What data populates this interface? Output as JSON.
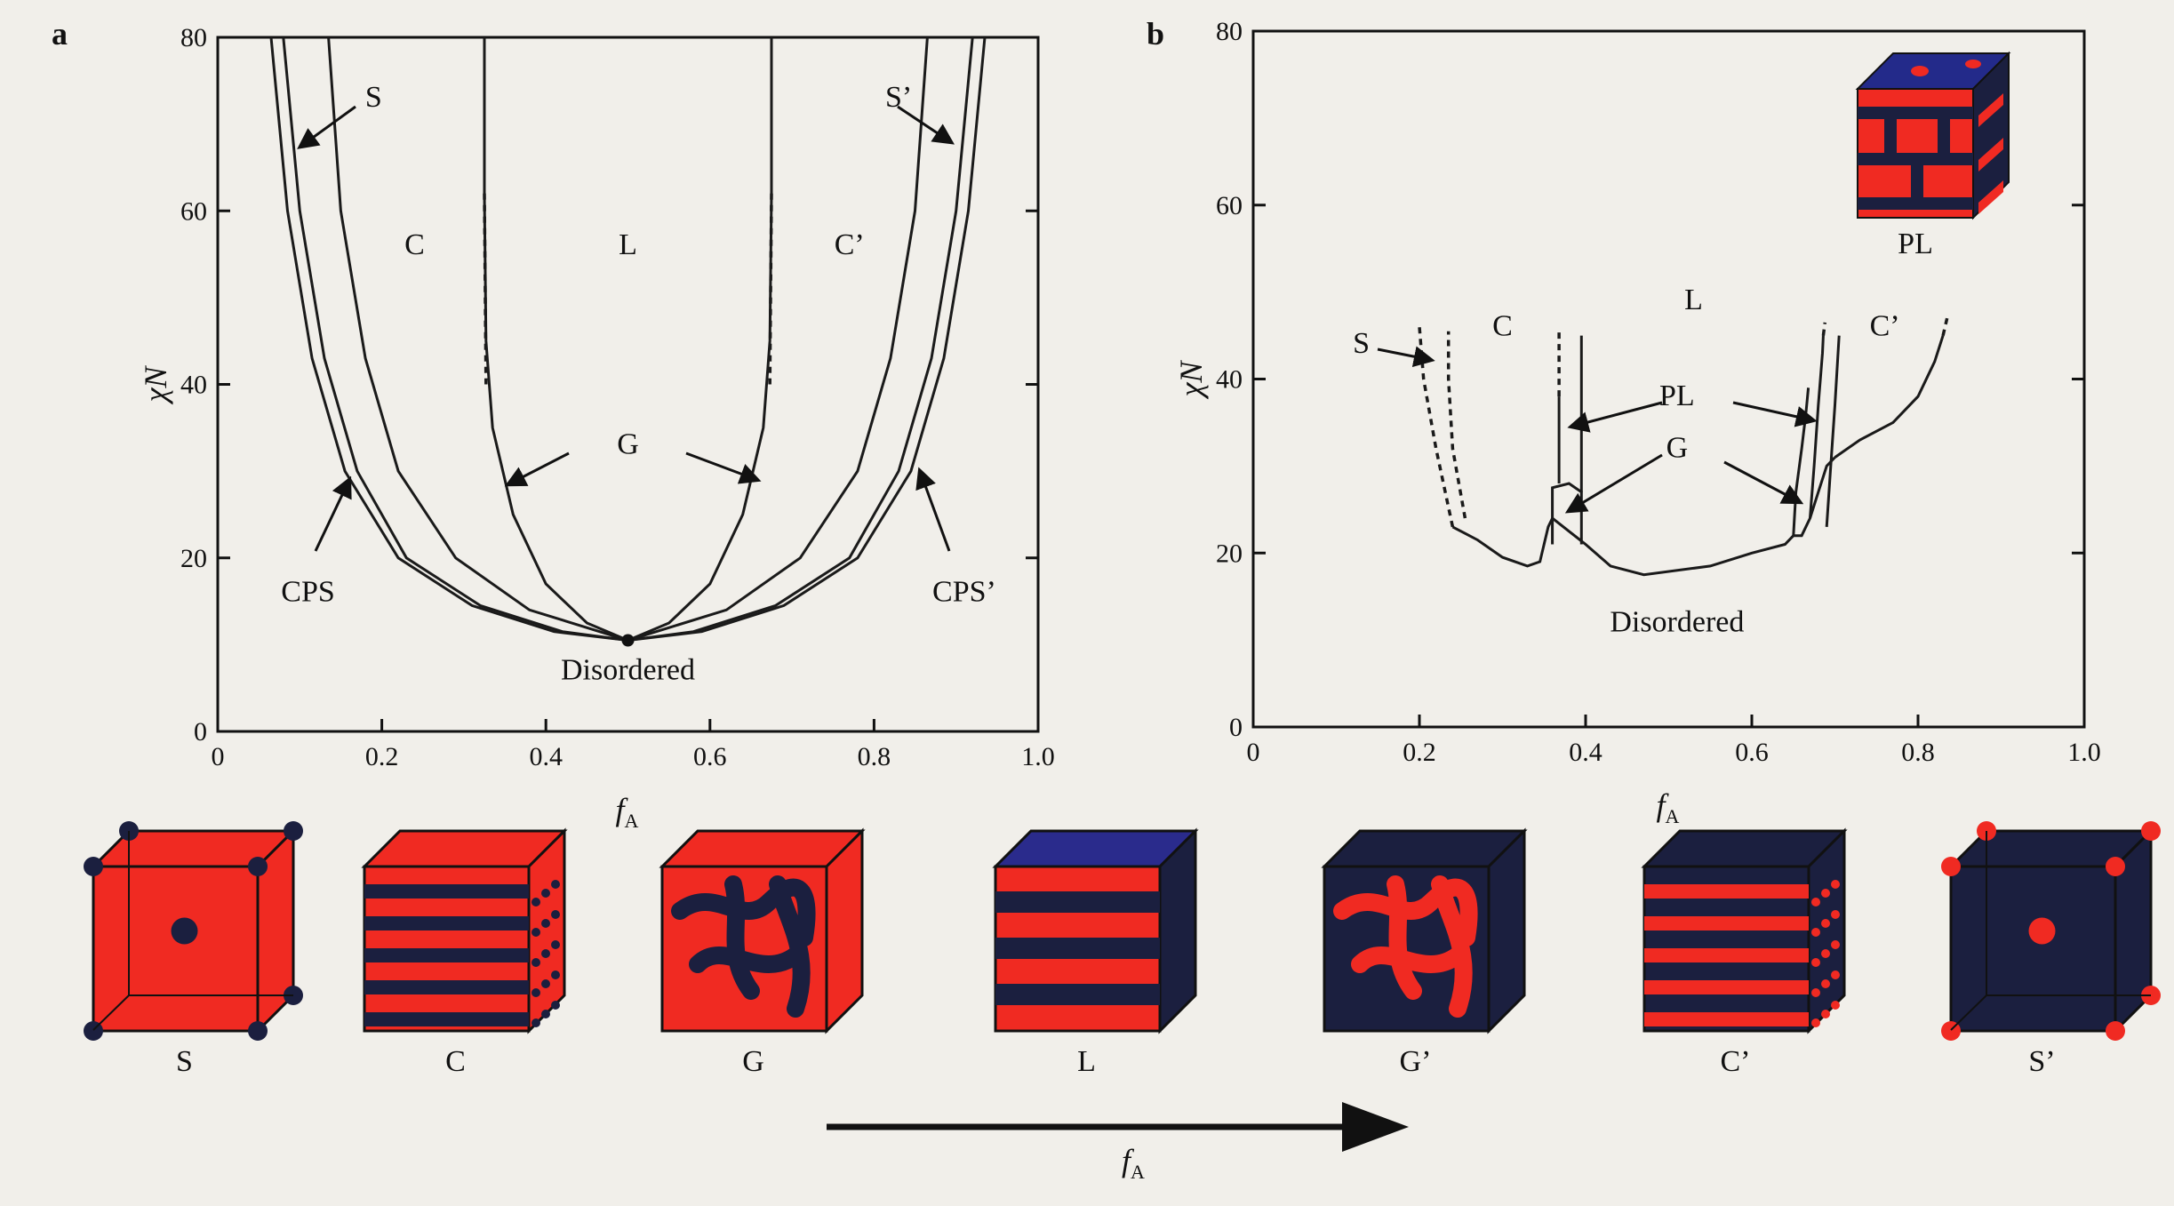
{
  "chart_data": [
    {
      "panel": "a",
      "type": "line",
      "xlabel": "f",
      "xlabel_sub": "A",
      "ylabel": "χN",
      "xlim": [
        0,
        1.0
      ],
      "ylim": [
        0,
        80
      ],
      "x_ticks": [
        "0",
        "0.2",
        "0.4",
        "0.6",
        "0.8",
        "1.0"
      ],
      "y_ticks": [
        "0",
        "20",
        "40",
        "60",
        "80"
      ],
      "regions": [
        {
          "label": "S",
          "x": 0.19,
          "y": 72
        },
        {
          "label": "C",
          "x": 0.24,
          "y": 55
        },
        {
          "label": "L",
          "x": 0.5,
          "y": 55
        },
        {
          "label": "C’",
          "x": 0.77,
          "y": 55
        },
        {
          "label": "S’",
          "x": 0.83,
          "y": 72
        },
        {
          "label": "G",
          "x": 0.5,
          "y": 32
        },
        {
          "label": "CPS",
          "x": 0.11,
          "y": 15
        },
        {
          "label": "CPS’",
          "x": 0.91,
          "y": 15
        },
        {
          "label": "Disordered",
          "x": 0.5,
          "y": 6
        }
      ],
      "critical_point": {
        "x": 0.5,
        "y": 10.5
      },
      "series": [
        {
          "points": [
            [
              0.08,
              80
            ],
            [
              0.1,
              60
            ],
            [
              0.13,
              43
            ],
            [
              0.17,
              30
            ],
            [
              0.23,
              20
            ],
            [
              0.32,
              14.5
            ],
            [
              0.42,
              11.5
            ],
            [
              0.5,
              10.5
            ],
            [
              0.58,
              11.5
            ],
            [
              0.68,
              14.5
            ],
            [
              0.77,
              20
            ],
            [
              0.83,
              30
            ],
            [
              0.87,
              43
            ],
            [
              0.9,
              60
            ],
            [
              0.92,
              80
            ]
          ]
        },
        {
          "points": [
            [
              0.065,
              80
            ],
            [
              0.085,
              60
            ],
            [
              0.115,
              43
            ],
            [
              0.155,
              30
            ],
            [
              0.22,
              20
            ],
            [
              0.31,
              14.5
            ],
            [
              0.41,
              11.5
            ],
            [
              0.5,
              10.5
            ],
            [
              0.59,
              11.5
            ],
            [
              0.69,
              14.5
            ],
            [
              0.78,
              20
            ],
            [
              0.845,
              30
            ],
            [
              0.885,
              43
            ],
            [
              0.915,
              60
            ],
            [
              0.935,
              80
            ]
          ]
        },
        {
          "points": [
            [
              0.135,
              80
            ],
            [
              0.15,
              60
            ],
            [
              0.18,
              43
            ],
            [
              0.22,
              30
            ],
            [
              0.29,
              20
            ],
            [
              0.38,
              14
            ],
            [
              0.5,
              10.5
            ],
            [
              0.62,
              14
            ],
            [
              0.71,
              20
            ],
            [
              0.78,
              30
            ],
            [
              0.82,
              43
            ],
            [
              0.85,
              60
            ],
            [
              0.865,
              80
            ]
          ]
        },
        {
          "points": [
            [
              0.325,
              80
            ],
            [
              0.325,
              62
            ],
            [
              0.327,
              45
            ],
            [
              0.335,
              35
            ],
            [
              0.36,
              25
            ],
            [
              0.4,
              17
            ],
            [
              0.45,
              12.5
            ],
            [
              0.5,
              10.5
            ],
            [
              0.55,
              12.5
            ],
            [
              0.6,
              17
            ],
            [
              0.64,
              25
            ],
            [
              0.665,
              35
            ],
            [
              0.673,
              45
            ],
            [
              0.675,
              62
            ],
            [
              0.675,
              80
            ]
          ]
        }
      ],
      "dashed_segments": [
        {
          "points": [
            [
              0.325,
              62
            ],
            [
              0.327,
              40
            ]
          ]
        },
        {
          "points": [
            [
              0.675,
              62
            ],
            [
              0.673,
              40
            ]
          ]
        }
      ]
    },
    {
      "panel": "b",
      "type": "line",
      "xlabel": "f",
      "xlabel_sub": "A",
      "ylabel": "χN",
      "xlim": [
        0,
        1.0
      ],
      "ylim": [
        0,
        80
      ],
      "x_ticks": [
        "0",
        "0.2",
        "0.4",
        "0.6",
        "0.8",
        "1.0"
      ],
      "y_ticks": [
        "0",
        "20",
        "40",
        "60",
        "80"
      ],
      "regions": [
        {
          "label": "S",
          "x": 0.13,
          "y": 43
        },
        {
          "label": "C",
          "x": 0.3,
          "y": 45
        },
        {
          "label": "L",
          "x": 0.53,
          "y": 48
        },
        {
          "label": "C’",
          "x": 0.76,
          "y": 45
        },
        {
          "label": "PL",
          "x": 0.51,
          "y": 37
        },
        {
          "label": "G",
          "x": 0.51,
          "y": 31
        },
        {
          "label": "Disordered",
          "x": 0.51,
          "y": 11
        },
        {
          "label": "PL",
          "x": 0.83,
          "y": 56
        }
      ],
      "series": [
        {
          "points": [
            [
              0.24,
              23
            ],
            [
              0.27,
              21.5
            ],
            [
              0.3,
              19.5
            ],
            [
              0.33,
              18.5
            ],
            [
              0.345,
              19
            ],
            [
              0.355,
              23
            ],
            [
              0.36,
              24
            ]
          ]
        },
        {
          "points": [
            [
              0.36,
              24
            ],
            [
              0.38,
              22.5
            ],
            [
              0.4,
              21
            ],
            [
              0.43,
              18.5
            ],
            [
              0.47,
              17.5
            ],
            [
              0.55,
              18.5
            ],
            [
              0.6,
              20
            ],
            [
              0.64,
              21
            ],
            [
              0.65,
              22
            ]
          ]
        },
        {
          "points": [
            [
              0.36,
              21
            ],
            [
              0.36,
              27.5
            ],
            [
              0.38,
              28
            ],
            [
              0.395,
              27
            ],
            [
              0.395,
              21
            ]
          ]
        },
        {
          "points": [
            [
              0.65,
              22
            ],
            [
              0.66,
              22
            ],
            [
              0.67,
              24
            ],
            [
              0.68,
              27
            ],
            [
              0.69,
              30
            ],
            [
              0.7,
              31
            ]
          ]
        },
        {
          "points": [
            [
              0.65,
              22
            ],
            [
              0.653,
              27
            ],
            [
              0.66,
              32
            ],
            [
              0.665,
              36
            ],
            [
              0.668,
              39
            ]
          ]
        },
        {
          "points": [
            [
              0.67,
              24
            ],
            [
              0.675,
              30
            ],
            [
              0.68,
              37
            ],
            [
              0.685,
              43
            ],
            [
              0.686,
              45
            ]
          ]
        },
        {
          "points": [
            [
              0.69,
              23
            ],
            [
              0.695,
              30
            ],
            [
              0.7,
              37
            ],
            [
              0.705,
              45
            ]
          ]
        },
        {
          "points": [
            [
              0.7,
              31
            ],
            [
              0.73,
              33
            ],
            [
              0.77,
              35
            ],
            [
              0.8,
              38
            ],
            [
              0.82,
              42
            ],
            [
              0.83,
              45
            ]
          ]
        },
        {
          "points": [
            [
              0.368,
              28
            ],
            [
              0.368,
              38
            ]
          ]
        },
        {
          "points": [
            [
              0.395,
              27
            ],
            [
              0.395,
              45
            ]
          ]
        }
      ],
      "dashed_segments": [
        {
          "points": [
            [
              0.24,
              23
            ],
            [
              0.22,
              32
            ],
            [
              0.205,
              40
            ],
            [
              0.2,
              46
            ]
          ]
        },
        {
          "points": [
            [
              0.255,
              24
            ],
            [
              0.24,
              32
            ],
            [
              0.235,
              40
            ],
            [
              0.235,
              45.5
            ]
          ]
        },
        {
          "points": [
            [
              0.368,
              38
            ],
            [
              0.368,
              45.5
            ]
          ]
        },
        {
          "points": [
            [
              0.686,
              45
            ],
            [
              0.688,
              46.5
            ]
          ]
        },
        {
          "points": [
            [
              0.83,
              45
            ],
            [
              0.835,
              47
            ]
          ]
        }
      ]
    }
  ],
  "morphologies": [
    {
      "label": "S",
      "color": "red"
    },
    {
      "label": "C",
      "color": "red"
    },
    {
      "label": "G",
      "color": "red"
    },
    {
      "label": "L",
      "color": "red-blue"
    },
    {
      "label": "G’",
      "color": "navy"
    },
    {
      "label": "C’",
      "color": "navy"
    },
    {
      "label": "S’",
      "color": "navy"
    }
  ],
  "panel_letters": [
    "a",
    "b"
  ],
  "bottom_axis": {
    "label": "f",
    "sub": "A"
  },
  "colors": {
    "red": "#f02a22",
    "navy": "#1b1f3f",
    "blue": "#2a2b8c"
  }
}
